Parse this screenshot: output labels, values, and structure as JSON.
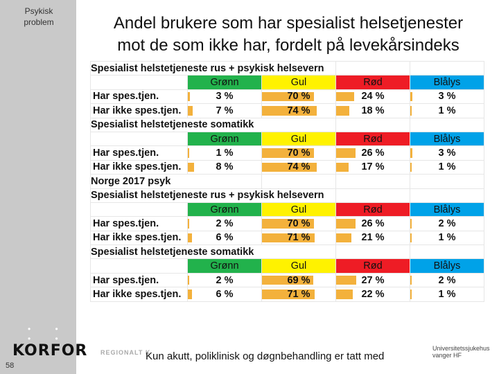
{
  "sidebar": {
    "label_line1": "Psykisk",
    "label_line2": "problem",
    "logo": "KORFOR",
    "page_number": "58",
    "regional": "REGIONALT K"
  },
  "title": {
    "line1": "Andel brukere som har spesialist helsetjenester",
    "line2": "mot de som ikke har, fordelt på levekårsindeks"
  },
  "headers": {
    "green": "Grønn",
    "yellow": "Gul",
    "red": "Rød",
    "blue": "Blålys"
  },
  "colors": {
    "green": "#22b24c",
    "yellow": "#fff200",
    "red": "#ee1c25",
    "blue": "#00a2e8",
    "bar": "#f3b13c"
  },
  "sections": [
    {
      "title": "Spesialist helstetjeneste rus + psykisk helsevern",
      "rows": [
        {
          "label": "Har spes.tjen.",
          "values": [
            "3 %",
            "70 %",
            "24 %",
            "3 %"
          ],
          "fractions": [
            0.03,
            0.7,
            0.24,
            0.03
          ]
        },
        {
          "label": "Har ikke spes.tjen.",
          "values": [
            "7 %",
            "74 %",
            "18 %",
            "1 %"
          ],
          "fractions": [
            0.07,
            0.74,
            0.18,
            0.01
          ]
        }
      ]
    },
    {
      "title": "Spesialist helstetjeneste somatikk",
      "rows": [
        {
          "label": "Har spes.tjen.",
          "values": [
            "1 %",
            "70 %",
            "26 %",
            "3 %"
          ],
          "fractions": [
            0.01,
            0.7,
            0.26,
            0.03
          ]
        },
        {
          "label": "Har ikke spes.tjen.",
          "values": [
            "8 %",
            "74 %",
            "17 %",
            "1 %"
          ],
          "fractions": [
            0.08,
            0.74,
            0.17,
            0.01
          ]
        }
      ]
    },
    {
      "title_line1": "Norge 2017 psyk",
      "title": "Spesialist helstetjeneste rus + psykisk helsevern",
      "rows": [
        {
          "label": "Har spes.tjen.",
          "values": [
            "2 %",
            "70 %",
            "26 %",
            "2 %"
          ],
          "fractions": [
            0.02,
            0.7,
            0.26,
            0.02
          ]
        },
        {
          "label": "Har ikke spes.tjen.",
          "values": [
            "6 %",
            "71 %",
            "21 %",
            "1 %"
          ],
          "fractions": [
            0.06,
            0.71,
            0.21,
            0.01
          ]
        }
      ]
    },
    {
      "title": "Spesialist helstetjeneste somatikk",
      "rows": [
        {
          "label": "Har spes.tjen.",
          "values": [
            "2 %",
            "69 %",
            "27 %",
            "2 %"
          ],
          "fractions": [
            0.02,
            0.69,
            0.27,
            0.02
          ]
        },
        {
          "label": "Har ikke spes.tjen.",
          "values": [
            "6 %",
            "71 %",
            "22 %",
            "1 %"
          ],
          "fractions": [
            0.06,
            0.71,
            0.22,
            0.01
          ]
        }
      ]
    }
  ],
  "footer": "Kun akutt, poliklinisk og døgnbehandling er tatt med",
  "logo_right": {
    "line1": "Universitetssjukehus",
    "line2": "vanger HF"
  }
}
